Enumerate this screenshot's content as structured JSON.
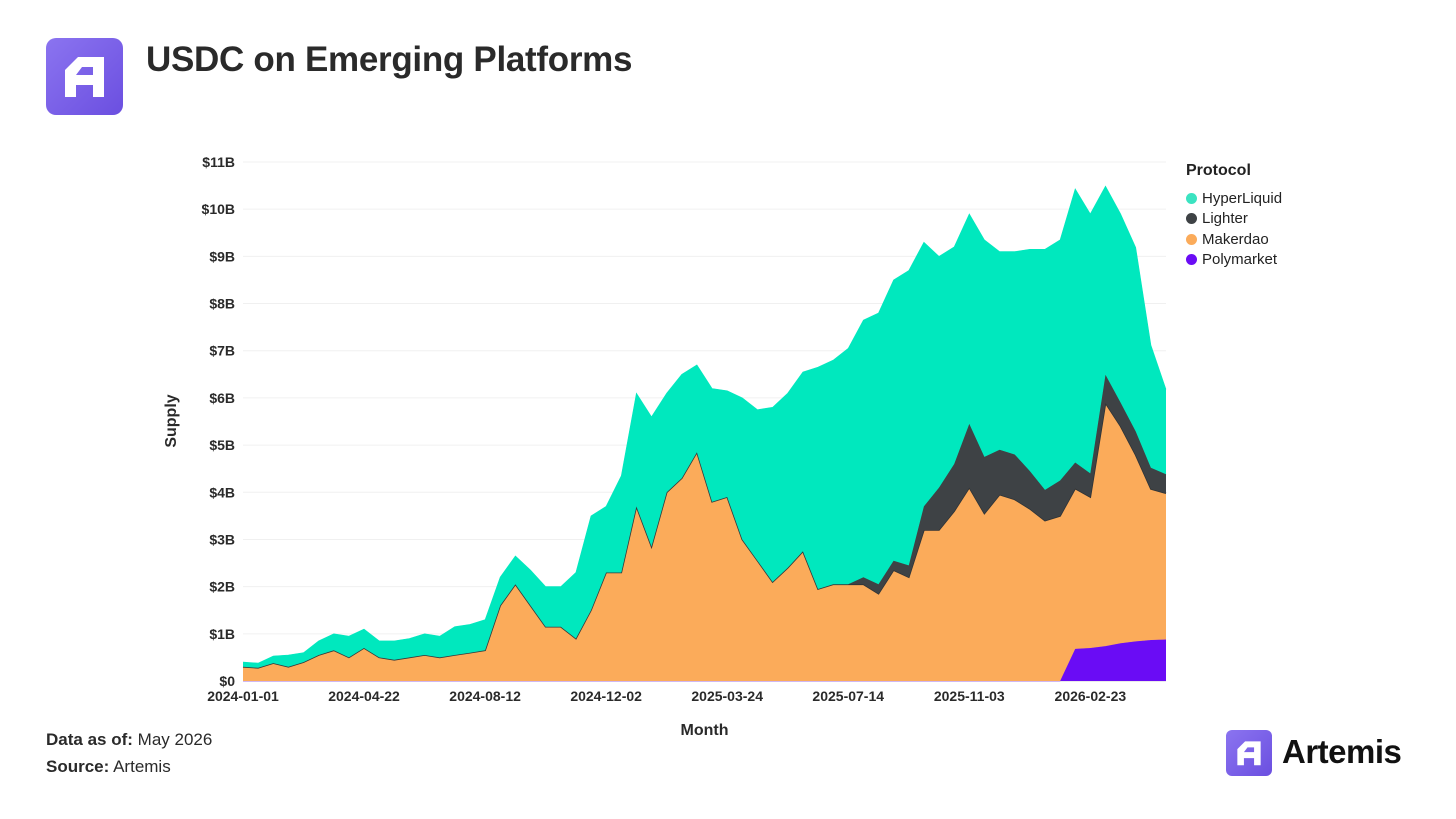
{
  "header": {
    "title": "USDC on Emerging Platforms"
  },
  "footer": {
    "data_as_of_label": "Data as of:",
    "data_as_of_value": "May 2026",
    "source_label": "Source:",
    "source_value": "Artemis"
  },
  "brand": {
    "name": "Artemis",
    "icon": "artemis-logo-icon"
  },
  "legend": {
    "title": "Protocol",
    "items": [
      {
        "name": "HyperLiquid",
        "color": "#00e8be"
      },
      {
        "name": "Lighter",
        "color": "#3e4245"
      },
      {
        "name": "Makerdao",
        "color": "#fbab5a"
      },
      {
        "name": "Polymarket",
        "color": "#6a0cf5"
      }
    ]
  },
  "chart_data": {
    "type": "area",
    "stacked": true,
    "title": "USDC on Emerging Platforms",
    "xlabel": "Month",
    "ylabel": "Supply",
    "x_ticks": [
      "2024-01-01",
      "2024-04-22",
      "2024-08-12",
      "2024-12-02",
      "2025-03-24",
      "2025-07-14",
      "2025-11-03",
      "2026-02-23"
    ],
    "y_ticks": [
      "$0",
      "$1B",
      "$2B",
      "$3B",
      "$4B",
      "$5B",
      "$6B",
      "$7B",
      "$8B",
      "$9B",
      "$10B",
      "$11B"
    ],
    "ylim": [
      0,
      11
    ],
    "y_unit": "$B",
    "grid": true,
    "legend_position": "right",
    "x": [
      "2024-01-01",
      "2024-01-15",
      "2024-01-29",
      "2024-02-12",
      "2024-02-26",
      "2024-03-11",
      "2024-03-25",
      "2024-04-08",
      "2024-04-22",
      "2024-05-06",
      "2024-05-20",
      "2024-06-03",
      "2024-06-17",
      "2024-07-01",
      "2024-07-15",
      "2024-07-29",
      "2024-08-12",
      "2024-08-26",
      "2024-09-09",
      "2024-09-23",
      "2024-10-07",
      "2024-10-21",
      "2024-11-04",
      "2024-11-18",
      "2024-12-02",
      "2024-12-16",
      "2024-12-30",
      "2025-01-13",
      "2025-01-27",
      "2025-02-10",
      "2025-02-24",
      "2025-03-10",
      "2025-03-24",
      "2025-04-07",
      "2025-04-21",
      "2025-05-05",
      "2025-05-19",
      "2025-06-02",
      "2025-06-16",
      "2025-06-30",
      "2025-07-14",
      "2025-07-28",
      "2025-08-11",
      "2025-08-25",
      "2025-09-08",
      "2025-09-22",
      "2025-10-06",
      "2025-10-20",
      "2025-11-03",
      "2025-11-17",
      "2025-12-01",
      "2025-12-15",
      "2025-12-29",
      "2026-01-12",
      "2026-01-26",
      "2026-02-09",
      "2026-02-23",
      "2026-03-09",
      "2026-03-23",
      "2026-04-06",
      "2026-04-20",
      "2026-05-04"
    ],
    "series": [
      {
        "name": "Polymarket",
        "color": "#6a0cf5",
        "values": [
          0,
          0,
          0,
          0,
          0,
          0,
          0,
          0,
          0,
          0,
          0,
          0,
          0,
          0,
          0,
          0,
          0,
          0,
          0,
          0,
          0,
          0,
          0,
          0,
          0,
          0,
          0,
          0,
          0,
          0,
          0,
          0,
          0,
          0,
          0,
          0,
          0,
          0,
          0,
          0,
          0,
          0,
          0,
          0,
          0,
          0,
          0,
          0,
          0,
          0,
          0,
          0,
          0,
          0,
          0,
          0.68,
          0.7,
          0.74,
          0.8,
          0.84,
          0.87,
          0.88
        ]
      },
      {
        "name": "Makerdao",
        "color": "#fbab5a",
        "values": [
          0.3,
          0.28,
          0.38,
          0.3,
          0.4,
          0.55,
          0.65,
          0.5,
          0.7,
          0.5,
          0.45,
          0.5,
          0.55,
          0.5,
          0.55,
          0.6,
          0.65,
          1.6,
          2.05,
          1.6,
          1.15,
          1.15,
          0.9,
          1.5,
          2.3,
          2.3,
          3.7,
          2.85,
          4.0,
          4.3,
          4.85,
          3.8,
          3.9,
          3.0,
          2.55,
          2.1,
          2.4,
          2.75,
          1.95,
          2.05,
          2.05,
          2.05,
          1.85,
          2.35,
          2.2,
          3.2,
          3.2,
          3.6,
          4.1,
          3.55,
          3.95,
          3.85,
          3.65,
          3.4,
          3.5,
          3.4,
          3.2,
          5.15,
          4.6,
          3.95,
          3.2,
          3.1
        ]
      },
      {
        "name": "Lighter",
        "color": "#3e4245",
        "values": [
          0,
          0,
          0,
          0,
          0,
          0,
          0,
          0,
          0,
          0,
          0,
          0,
          0,
          0,
          0,
          0,
          0,
          0,
          0,
          0,
          0,
          0,
          0,
          0,
          0,
          0,
          0,
          0,
          0,
          0,
          0,
          0,
          0,
          0,
          0,
          0,
          0,
          0,
          0,
          0,
          0,
          0.15,
          0.2,
          0.2,
          0.25,
          0.5,
          0.9,
          1.0,
          1.35,
          1.2,
          0.95,
          0.95,
          0.8,
          0.65,
          0.75,
          0.55,
          0.5,
          0.6,
          0.5,
          0.5,
          0.45,
          0.4
        ]
      },
      {
        "name": "HyperLiquid",
        "color": "#00e8be",
        "values": [
          0.1,
          0.1,
          0.15,
          0.25,
          0.2,
          0.3,
          0.35,
          0.45,
          0.4,
          0.35,
          0.4,
          0.4,
          0.45,
          0.45,
          0.6,
          0.6,
          0.65,
          0.6,
          0.6,
          0.75,
          0.85,
          0.85,
          1.4,
          2.0,
          1.4,
          2.05,
          2.4,
          2.75,
          2.1,
          2.2,
          1.85,
          2.4,
          2.25,
          3.0,
          3.2,
          3.7,
          3.7,
          3.8,
          4.7,
          4.75,
          5.0,
          5.45,
          5.75,
          5.95,
          6.25,
          5.6,
          4.9,
          4.6,
          4.45,
          4.6,
          4.2,
          4.3,
          4.7,
          5.1,
          5.1,
          5.8,
          5.5,
          4.0,
          4.0,
          3.9,
          2.6,
          1.8
        ]
      }
    ]
  }
}
